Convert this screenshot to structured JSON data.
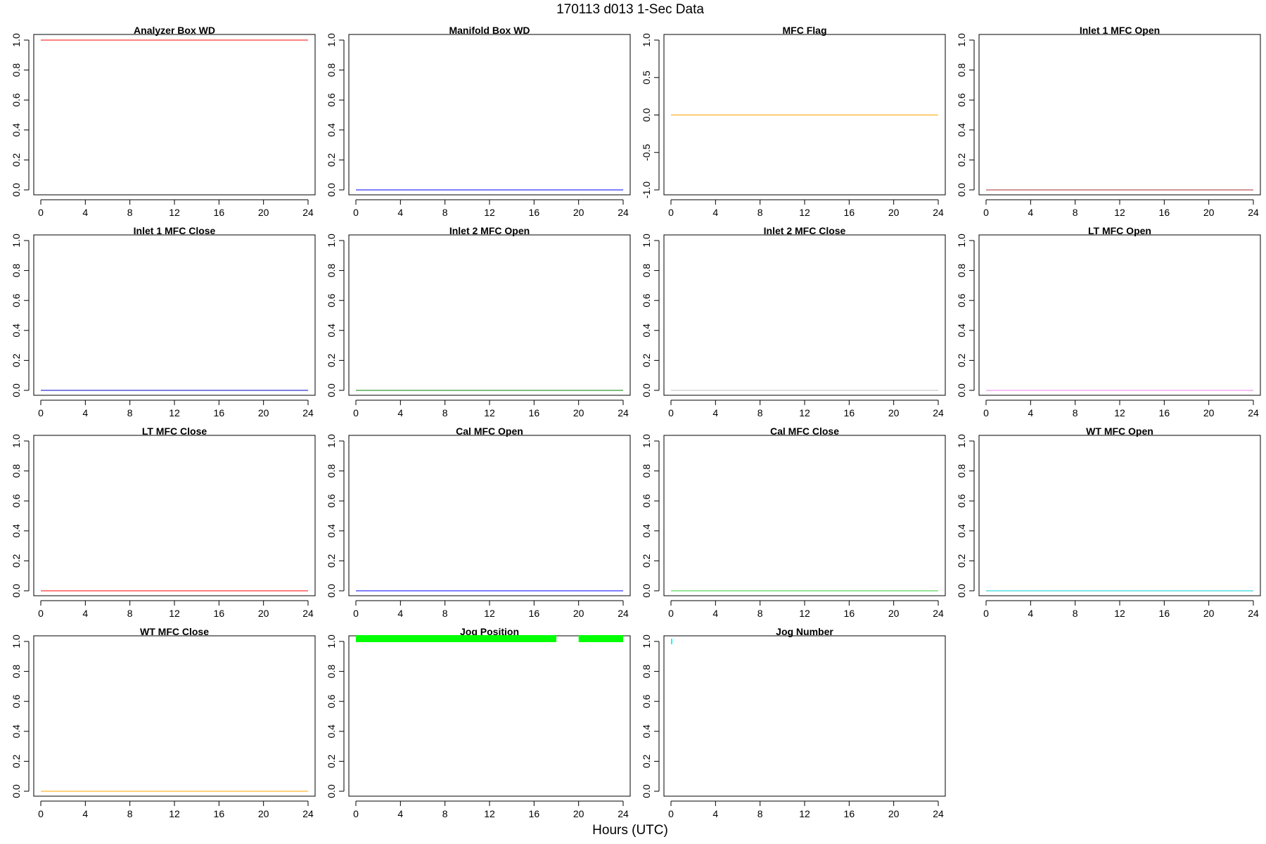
{
  "figure": {
    "title": "170113   d013   1-Sec Data",
    "xlabel": "Hours (UTC)"
  },
  "chart_data": [
    {
      "type": "line",
      "title": "Analyzer Box WD",
      "xlim": [
        0,
        24
      ],
      "xticks": [
        0,
        4,
        8,
        12,
        16,
        20,
        24
      ],
      "ylim": [
        0,
        1
      ],
      "yticks": [
        "0.0",
        "0.2",
        "0.4",
        "0.6",
        "0.8",
        "1.0"
      ],
      "color": "#ff0000",
      "segments": [
        {
          "x": [
            0,
            24
          ],
          "y": [
            1,
            1
          ]
        }
      ]
    },
    {
      "type": "line",
      "title": "Manifold Box WD",
      "xlim": [
        0,
        24
      ],
      "xticks": [
        0,
        4,
        8,
        12,
        16,
        20,
        24
      ],
      "ylim": [
        0,
        1
      ],
      "yticks": [
        "0.0",
        "0.2",
        "0.4",
        "0.6",
        "0.8",
        "1.0"
      ],
      "color": "#0000ff",
      "segments": [
        {
          "x": [
            0,
            24
          ],
          "y": [
            0,
            0
          ]
        }
      ]
    },
    {
      "type": "line",
      "title": "MFC Flag",
      "xlim": [
        0,
        24
      ],
      "xticks": [
        0,
        4,
        8,
        12,
        16,
        20,
        24
      ],
      "ylim": [
        -1,
        1
      ],
      "yticks": [
        "-1.0",
        "-0.5",
        "0.0",
        "0.5",
        "1.0"
      ],
      "color": "#ffa500",
      "segments": [
        {
          "x": [
            0,
            24
          ],
          "y": [
            0,
            0
          ]
        }
      ]
    },
    {
      "type": "line",
      "title": "Inlet 1 MFC Open",
      "xlim": [
        0,
        24
      ],
      "xticks": [
        0,
        4,
        8,
        12,
        16,
        20,
        24
      ],
      "ylim": [
        0,
        1
      ],
      "yticks": [
        "0.0",
        "0.2",
        "0.4",
        "0.6",
        "0.8",
        "1.0"
      ],
      "color": "#a52a2a",
      "segments": [
        {
          "x": [
            0,
            24
          ],
          "y": [
            0,
            0
          ]
        }
      ]
    },
    {
      "type": "line",
      "title": "Inlet 1 MFC Close",
      "xlim": [
        0,
        24
      ],
      "xticks": [
        0,
        4,
        8,
        12,
        16,
        20,
        24
      ],
      "ylim": [
        0,
        1
      ],
      "yticks": [
        "0.0",
        "0.2",
        "0.4",
        "0.6",
        "0.8",
        "1.0"
      ],
      "color": "#0000cd",
      "segments": [
        {
          "x": [
            0,
            24
          ],
          "y": [
            0,
            0
          ]
        }
      ]
    },
    {
      "type": "line",
      "title": "Inlet 2 MFC Open",
      "xlim": [
        0,
        24
      ],
      "xticks": [
        0,
        4,
        8,
        12,
        16,
        20,
        24
      ],
      "ylim": [
        0,
        1
      ],
      "yticks": [
        "0.0",
        "0.2",
        "0.4",
        "0.6",
        "0.8",
        "1.0"
      ],
      "color": "#008000",
      "segments": [
        {
          "x": [
            0,
            24
          ],
          "y": [
            0,
            0
          ]
        }
      ]
    },
    {
      "type": "line",
      "title": "Inlet 2 MFC Close",
      "xlim": [
        0,
        24
      ],
      "xticks": [
        0,
        4,
        8,
        12,
        16,
        20,
        24
      ],
      "ylim": [
        0,
        1
      ],
      "yticks": [
        "0.0",
        "0.2",
        "0.4",
        "0.6",
        "0.8",
        "1.0"
      ],
      "color": "#bebebe",
      "segments": [
        {
          "x": [
            0,
            24
          ],
          "y": [
            0,
            0
          ]
        }
      ]
    },
    {
      "type": "line",
      "title": "LT MFC Open",
      "xlim": [
        0,
        24
      ],
      "xticks": [
        0,
        4,
        8,
        12,
        16,
        20,
        24
      ],
      "ylim": [
        0,
        1
      ],
      "yticks": [
        "0.0",
        "0.2",
        "0.4",
        "0.6",
        "0.8",
        "1.0"
      ],
      "color": "#ee82ee",
      "segments": [
        {
          "x": [
            0,
            24
          ],
          "y": [
            0,
            0
          ]
        }
      ]
    },
    {
      "type": "line",
      "title": "LT MFC Close",
      "xlim": [
        0,
        24
      ],
      "xticks": [
        0,
        4,
        8,
        12,
        16,
        20,
        24
      ],
      "ylim": [
        0,
        1
      ],
      "yticks": [
        "0.0",
        "0.2",
        "0.4",
        "0.6",
        "0.8",
        "1.0"
      ],
      "color": "#ff0000",
      "segments": [
        {
          "x": [
            0,
            24
          ],
          "y": [
            0,
            0
          ]
        }
      ]
    },
    {
      "type": "line",
      "title": "Cal MFC Open",
      "xlim": [
        0,
        24
      ],
      "xticks": [
        0,
        4,
        8,
        12,
        16,
        20,
        24
      ],
      "ylim": [
        0,
        1
      ],
      "yticks": [
        "0.0",
        "0.2",
        "0.4",
        "0.6",
        "0.8",
        "1.0"
      ],
      "color": "#0000ff",
      "segments": [
        {
          "x": [
            0,
            24
          ],
          "y": [
            0,
            0
          ]
        }
      ]
    },
    {
      "type": "line",
      "title": "Cal MFC Close",
      "xlim": [
        0,
        24
      ],
      "xticks": [
        0,
        4,
        8,
        12,
        16,
        20,
        24
      ],
      "ylim": [
        0,
        1
      ],
      "yticks": [
        "0.0",
        "0.2",
        "0.4",
        "0.6",
        "0.8",
        "1.0"
      ],
      "color": "#32cd32",
      "segments": [
        {
          "x": [
            0,
            24
          ],
          "y": [
            0,
            0
          ]
        }
      ]
    },
    {
      "type": "line",
      "title": "WT MFC Open",
      "xlim": [
        0,
        24
      ],
      "xticks": [
        0,
        4,
        8,
        12,
        16,
        20,
        24
      ],
      "ylim": [
        0,
        1
      ],
      "yticks": [
        "0.0",
        "0.2",
        "0.4",
        "0.6",
        "0.8",
        "1.0"
      ],
      "color": "#00ced1",
      "segments": [
        {
          "x": [
            0,
            24
          ],
          "y": [
            0,
            0
          ]
        }
      ]
    },
    {
      "type": "line",
      "title": "WT MFC Close",
      "xlim": [
        0,
        24
      ],
      "xticks": [
        0,
        4,
        8,
        12,
        16,
        20,
        24
      ],
      "ylim": [
        0,
        1
      ],
      "yticks": [
        "0.0",
        "0.2",
        "0.4",
        "0.6",
        "0.8",
        "1.0"
      ],
      "color": "#ffa500",
      "segments": [
        {
          "x": [
            0,
            24
          ],
          "y": [
            0,
            0
          ]
        }
      ]
    },
    {
      "type": "line",
      "title": "Jog Position",
      "xlim": [
        0,
        24
      ],
      "xticks": [
        0,
        4,
        8,
        12,
        16,
        20,
        24
      ],
      "ylim": [
        0,
        1
      ],
      "yticks": [
        "0.0",
        "0.2",
        "0.4",
        "0.6",
        "0.8",
        "1.0"
      ],
      "color": "#00ff00",
      "thick": true,
      "segments": [
        {
          "x": [
            0,
            18
          ],
          "y": [
            1,
            1
          ]
        },
        {
          "x": [
            20,
            24
          ],
          "y": [
            1,
            1
          ]
        }
      ]
    },
    {
      "type": "line",
      "title": "Jog Number",
      "xlim": [
        0,
        24
      ],
      "xticks": [
        0,
        4,
        8,
        12,
        16,
        20,
        24
      ],
      "ylim": [
        0,
        1
      ],
      "yticks": [
        "0.0",
        "0.2",
        "0.4",
        "0.6",
        "0.8",
        "1.0"
      ],
      "color": "#00ffff",
      "segments": [
        {
          "x": [
            0,
            0.05
          ],
          "y": [
            1,
            1
          ]
        }
      ]
    }
  ]
}
